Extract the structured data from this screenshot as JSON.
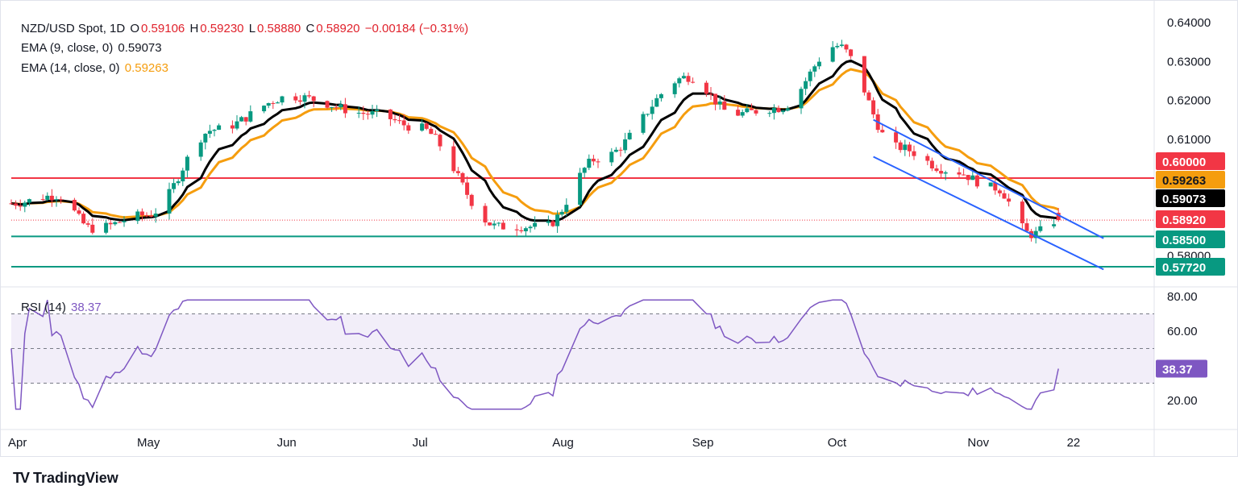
{
  "header": {
    "symbol": "NZD/USD Spot, 1D",
    "ohlc": [
      {
        "label": "O",
        "value": "0.59106"
      },
      {
        "label": "H",
        "value": "0.59230"
      },
      {
        "label": "L",
        "value": "0.58880"
      },
      {
        "label": "C",
        "value": "0.58920"
      }
    ],
    "change": "−0.00184 (−0.31%)",
    "ema9_label": "EMA (9, close, 0)",
    "ema9_value": "0.59073",
    "ema14_label": "EMA (14, close, 0)",
    "ema14_value": "0.59263",
    "rsi_label": "RSI (14)",
    "rsi_value": "38.37"
  },
  "brand": {
    "logo": "TV",
    "name": "TradingView"
  },
  "colors": {
    "up": "#089981",
    "down": "#f23645",
    "ema9": "#000000",
    "ema14": "#f59d0e",
    "resistance": "#f23645",
    "support": "#089981",
    "channel": "#2962ff",
    "rsi": "#7e57c2"
  },
  "chart_data": [
    {
      "type": "candlestick",
      "title": "NZD/USD Spot, 1D",
      "ylim": [
        0.5725,
        0.6415
      ],
      "y_ticks": [
        "0.64000",
        "0.63000",
        "0.62000",
        "0.61000",
        "0.58000"
      ],
      "x_ticks": [
        "Apr",
        "May",
        "Jun",
        "Jul",
        "Aug",
        "Sep",
        "Oct",
        "Nov",
        "22"
      ],
      "horizontal_levels": [
        {
          "value": 0.6,
          "label": "0.60000",
          "color": "#f23645"
        },
        {
          "value": 0.585,
          "label": "0.58500",
          "color": "#089981"
        },
        {
          "value": 0.5772,
          "label": "0.57720",
          "color": "#089981"
        }
      ],
      "price_badges": [
        {
          "label": "0.60000",
          "value": 0.6,
          "color": "#f23645"
        },
        {
          "label": "0.59263",
          "value": 0.59263,
          "color": "#f59d0e"
        },
        {
          "label": "0.59073",
          "value": 0.59073,
          "color": "#000000"
        },
        {
          "label": "0.58920",
          "value": 0.5892,
          "color": "#f23645"
        },
        {
          "label": "0.58500",
          "value": 0.585,
          "color": "#089981"
        },
        {
          "label": "0.57720",
          "value": 0.5772,
          "color": "#089981"
        }
      ],
      "channel": {
        "upper": [
          {
            "x": "Oct 08",
            "y": 0.615
          },
          {
            "x": "Nov 28",
            "y": 0.5845
          }
        ],
        "lower": [
          {
            "x": "Oct 08",
            "y": 0.6055
          },
          {
            "x": "Nov 28",
            "y": 0.5765
          }
        ]
      },
      "series": [
        {
          "name": "EMA (9, close, 0)",
          "current": 0.59073
        },
        {
          "name": "EMA (14, close, 0)",
          "current": 0.59263
        }
      ],
      "last_close": 0.5892
    },
    {
      "type": "line",
      "title": "RSI (14)",
      "ylim": [
        10,
        82
      ],
      "y_ticks": [
        "80.00",
        "60.00",
        "20.00"
      ],
      "levels": [
        70,
        50,
        30
      ],
      "last": 38.37,
      "last_label": "38.37"
    }
  ]
}
